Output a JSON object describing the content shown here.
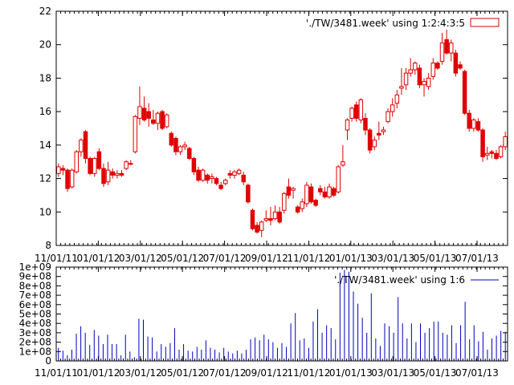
{
  "colors": {
    "candle": "#e00000",
    "volume": "#0000c0",
    "axis": "#000000"
  },
  "chart_data": [
    {
      "type": "candlestick",
      "legend_label": "'./TW/3481.week' using 1:2:4:3:5",
      "legend_position": "top-right",
      "ylim": [
        8,
        22
      ],
      "yticks": [
        "8",
        "10",
        "12",
        "14",
        "16",
        "18",
        "20",
        "22"
      ],
      "xtick_labels": [
        "11/01/11",
        "01/01/12",
        "03/01/12",
        "05/01/12",
        "07/01/12",
        "09/01/12",
        "11/01/12",
        "01/01/13",
        "03/01/13",
        "05/01/13",
        "07/01/13"
      ],
      "candles": [
        {
          "o": 12.3,
          "h": 12.9,
          "l": 12.1,
          "c": 12.7
        },
        {
          "o": 12.6,
          "h": 12.8,
          "l": 12.2,
          "c": 12.5
        },
        {
          "o": 12.5,
          "h": 12.6,
          "l": 11.2,
          "c": 11.4
        },
        {
          "o": 11.5,
          "h": 12.6,
          "l": 11.4,
          "c": 12.5
        },
        {
          "o": 12.4,
          "h": 13.7,
          "l": 12.3,
          "c": 13.6
        },
        {
          "o": 13.6,
          "h": 14.4,
          "l": 13.3,
          "c": 14.3
        },
        {
          "o": 14.8,
          "h": 14.9,
          "l": 12.9,
          "c": 13.2
        },
        {
          "o": 13.2,
          "h": 13.3,
          "l": 12.2,
          "c": 12.3
        },
        {
          "o": 12.3,
          "h": 13.3,
          "l": 12.1,
          "c": 13.2
        },
        {
          "o": 13.6,
          "h": 13.8,
          "l": 12.5,
          "c": 12.6
        },
        {
          "o": 12.6,
          "h": 12.9,
          "l": 11.5,
          "c": 11.7
        },
        {
          "o": 11.8,
          "h": 13.0,
          "l": 11.6,
          "c": 12.5
        },
        {
          "o": 12.4,
          "h": 12.6,
          "l": 12.0,
          "c": 12.2
        },
        {
          "o": 12.2,
          "h": 12.5,
          "l": 12.0,
          "c": 12.3
        },
        {
          "o": 12.3,
          "h": 12.5,
          "l": 12.1,
          "c": 12.2
        },
        {
          "o": 12.6,
          "h": 13.1,
          "l": 12.5,
          "c": 13.0
        },
        {
          "o": 12.9,
          "h": 13.1,
          "l": 12.8,
          "c": 12.9
        },
        {
          "o": 13.6,
          "h": 15.8,
          "l": 13.5,
          "c": 15.7
        },
        {
          "o": 15.6,
          "h": 17.5,
          "l": 15.2,
          "c": 16.3
        },
        {
          "o": 16.2,
          "h": 16.9,
          "l": 15.4,
          "c": 15.5
        },
        {
          "o": 16.0,
          "h": 16.5,
          "l": 15.1,
          "c": 15.6
        },
        {
          "o": 15.5,
          "h": 16.1,
          "l": 15.2,
          "c": 15.3
        },
        {
          "o": 15.3,
          "h": 16.0,
          "l": 14.9,
          "c": 15.9
        },
        {
          "o": 16.0,
          "h": 16.1,
          "l": 14.9,
          "c": 15.0
        },
        {
          "o": 15.1,
          "h": 15.9,
          "l": 15.0,
          "c": 15.8
        },
        {
          "o": 14.7,
          "h": 14.8,
          "l": 13.9,
          "c": 14.0
        },
        {
          "o": 14.4,
          "h": 14.5,
          "l": 13.4,
          "c": 13.6
        },
        {
          "o": 13.6,
          "h": 14.0,
          "l": 13.4,
          "c": 13.9
        },
        {
          "o": 13.9,
          "h": 14.2,
          "l": 13.7,
          "c": 14.0
        },
        {
          "o": 13.8,
          "h": 13.9,
          "l": 13.1,
          "c": 13.2
        },
        {
          "o": 13.2,
          "h": 13.3,
          "l": 12.2,
          "c": 12.4
        },
        {
          "o": 12.5,
          "h": 12.7,
          "l": 11.8,
          "c": 11.9
        },
        {
          "o": 11.9,
          "h": 12.6,
          "l": 11.8,
          "c": 12.5
        },
        {
          "o": 12.2,
          "h": 12.3,
          "l": 11.7,
          "c": 11.9
        },
        {
          "o": 12.0,
          "h": 12.3,
          "l": 11.7,
          "c": 12.1
        },
        {
          "o": 12.0,
          "h": 12.1,
          "l": 11.6,
          "c": 11.7
        },
        {
          "o": 11.6,
          "h": 11.8,
          "l": 11.3,
          "c": 11.4
        },
        {
          "o": 11.7,
          "h": 12.0,
          "l": 11.6,
          "c": 11.9
        },
        {
          "o": 12.3,
          "h": 12.5,
          "l": 12.0,
          "c": 12.2
        },
        {
          "o": 12.2,
          "h": 12.5,
          "l": 12.0,
          "c": 12.4
        },
        {
          "o": 12.3,
          "h": 12.6,
          "l": 12.2,
          "c": 12.5
        },
        {
          "o": 12.2,
          "h": 12.4,
          "l": 11.6,
          "c": 11.8
        },
        {
          "o": 11.6,
          "h": 11.7,
          "l": 10.5,
          "c": 10.6
        },
        {
          "o": 10.1,
          "h": 10.2,
          "l": 8.9,
          "c": 9.0
        },
        {
          "o": 9.2,
          "h": 9.4,
          "l": 8.7,
          "c": 8.8
        },
        {
          "o": 8.9,
          "h": 9.5,
          "l": 8.5,
          "c": 9.4
        },
        {
          "o": 9.5,
          "h": 10.1,
          "l": 9.4,
          "c": 9.6
        },
        {
          "o": 9.6,
          "h": 10.3,
          "l": 9.2,
          "c": 9.5
        },
        {
          "o": 9.6,
          "h": 10.4,
          "l": 9.5,
          "c": 10.0
        },
        {
          "o": 10.0,
          "h": 10.3,
          "l": 9.3,
          "c": 9.4
        },
        {
          "o": 10.1,
          "h": 11.2,
          "l": 9.9,
          "c": 11.1
        },
        {
          "o": 11.5,
          "h": 12.0,
          "l": 10.8,
          "c": 11.0
        },
        {
          "o": 11.3,
          "h": 11.5,
          "l": 10.8,
          "c": 11.4
        },
        {
          "o": 10.3,
          "h": 10.4,
          "l": 9.9,
          "c": 10.0
        },
        {
          "o": 10.2,
          "h": 10.8,
          "l": 10.0,
          "c": 10.6
        },
        {
          "o": 10.5,
          "h": 11.8,
          "l": 10.3,
          "c": 11.6
        },
        {
          "o": 11.5,
          "h": 11.7,
          "l": 10.5,
          "c": 10.6
        },
        {
          "o": 10.7,
          "h": 10.8,
          "l": 10.3,
          "c": 10.4
        },
        {
          "o": 11.4,
          "h": 11.6,
          "l": 11.0,
          "c": 11.2
        },
        {
          "o": 11.2,
          "h": 11.5,
          "l": 10.8,
          "c": 10.9
        },
        {
          "o": 10.9,
          "h": 11.7,
          "l": 10.8,
          "c": 11.5
        },
        {
          "o": 11.4,
          "h": 11.5,
          "l": 10.9,
          "c": 11.0
        },
        {
          "o": 11.2,
          "h": 12.8,
          "l": 11.1,
          "c": 12.7
        },
        {
          "o": 12.8,
          "h": 14.0,
          "l": 12.7,
          "c": 13.0
        },
        {
          "o": 14.9,
          "h": 15.6,
          "l": 14.3,
          "c": 15.5
        },
        {
          "o": 15.6,
          "h": 16.3,
          "l": 15.4,
          "c": 16.2
        },
        {
          "o": 16.4,
          "h": 16.6,
          "l": 15.4,
          "c": 15.6
        },
        {
          "o": 15.5,
          "h": 16.8,
          "l": 15.3,
          "c": 16.7
        },
        {
          "o": 15.6,
          "h": 15.9,
          "l": 14.6,
          "c": 14.9
        },
        {
          "o": 14.9,
          "h": 15.0,
          "l": 13.5,
          "c": 13.7
        },
        {
          "o": 13.9,
          "h": 14.5,
          "l": 13.7,
          "c": 14.3
        },
        {
          "o": 14.7,
          "h": 15.4,
          "l": 14.3,
          "c": 14.6
        },
        {
          "o": 14.8,
          "h": 15.1,
          "l": 14.6,
          "c": 14.9
        },
        {
          "o": 15.4,
          "h": 16.2,
          "l": 15.3,
          "c": 16.0
        },
        {
          "o": 16.0,
          "h": 16.8,
          "l": 15.7,
          "c": 16.4
        },
        {
          "o": 16.5,
          "h": 17.3,
          "l": 16.2,
          "c": 17.0
        },
        {
          "o": 17.4,
          "h": 18.6,
          "l": 17.0,
          "c": 17.5
        },
        {
          "o": 17.6,
          "h": 18.6,
          "l": 17.3,
          "c": 18.3
        },
        {
          "o": 18.3,
          "h": 19.2,
          "l": 18.1,
          "c": 18.5
        },
        {
          "o": 18.5,
          "h": 19.0,
          "l": 18.2,
          "c": 18.9
        },
        {
          "o": 18.6,
          "h": 18.8,
          "l": 17.4,
          "c": 17.6
        },
        {
          "o": 17.6,
          "h": 18.0,
          "l": 16.9,
          "c": 17.8
        },
        {
          "o": 17.5,
          "h": 18.3,
          "l": 17.3,
          "c": 18.0
        },
        {
          "o": 18.1,
          "h": 19.2,
          "l": 17.9,
          "c": 18.9
        },
        {
          "o": 18.9,
          "h": 19.0,
          "l": 18.5,
          "c": 18.6
        },
        {
          "o": 19.0,
          "h": 20.7,
          "l": 18.8,
          "c": 20.1
        },
        {
          "o": 20.3,
          "h": 20.9,
          "l": 19.4,
          "c": 19.5
        },
        {
          "o": 19.5,
          "h": 20.3,
          "l": 19.0,
          "c": 20.1
        },
        {
          "o": 19.5,
          "h": 19.7,
          "l": 18.1,
          "c": 18.3
        },
        {
          "o": 18.8,
          "h": 19.0,
          "l": 18.5,
          "c": 18.6
        },
        {
          "o": 18.4,
          "h": 18.5,
          "l": 15.8,
          "c": 15.9
        },
        {
          "o": 15.9,
          "h": 16.1,
          "l": 14.8,
          "c": 15.0
        },
        {
          "o": 15.0,
          "h": 15.6,
          "l": 14.8,
          "c": 15.5
        },
        {
          "o": 15.4,
          "h": 15.6,
          "l": 14.8,
          "c": 14.9
        },
        {
          "o": 14.9,
          "h": 15.0,
          "l": 13.0,
          "c": 13.3
        },
        {
          "o": 13.4,
          "h": 13.9,
          "l": 13.1,
          "c": 13.5
        },
        {
          "o": 13.6,
          "h": 13.7,
          "l": 13.2,
          "c": 13.5
        },
        {
          "o": 13.5,
          "h": 13.7,
          "l": 13.1,
          "c": 13.2
        },
        {
          "o": 13.3,
          "h": 14.0,
          "l": 13.2,
          "c": 13.9
        },
        {
          "o": 13.9,
          "h": 14.8,
          "l": 13.7,
          "c": 14.5
        }
      ]
    },
    {
      "type": "impulse",
      "legend_label": "'./TW/3481.week' using 1:6",
      "legend_position": "top-right",
      "ylim": [
        0,
        1000000000
      ],
      "yticks": [
        "0",
        "1e+08",
        "2e+08",
        "3e+08",
        "4e+08",
        "5e+08",
        "6e+08",
        "7e+08",
        "8e+08",
        "9e+08",
        "1e+09"
      ],
      "xtick_labels": [
        "11/01/11",
        "01/01/12",
        "03/01/12",
        "05/01/12",
        "07/01/12",
        "09/01/12",
        "11/01/12",
        "01/01/13",
        "03/01/13",
        "05/01/13",
        "07/01/13"
      ],
      "values": [
        140000000,
        110000000,
        60000000,
        120000000,
        290000000,
        370000000,
        300000000,
        170000000,
        330000000,
        270000000,
        180000000,
        280000000,
        180000000,
        180000000,
        60000000,
        280000000,
        100000000,
        40000000,
        450000000,
        440000000,
        260000000,
        250000000,
        100000000,
        180000000,
        150000000,
        190000000,
        350000000,
        120000000,
        180000000,
        110000000,
        100000000,
        150000000,
        120000000,
        220000000,
        140000000,
        120000000,
        90000000,
        140000000,
        100000000,
        80000000,
        110000000,
        80000000,
        120000000,
        230000000,
        250000000,
        220000000,
        280000000,
        230000000,
        200000000,
        140000000,
        190000000,
        150000000,
        400000000,
        510000000,
        220000000,
        240000000,
        140000000,
        420000000,
        550000000,
        300000000,
        380000000,
        350000000,
        230000000,
        940000000,
        970000000,
        950000000,
        740000000,
        610000000,
        460000000,
        300000000,
        720000000,
        240000000,
        160000000,
        400000000,
        370000000,
        300000000,
        680000000,
        400000000,
        240000000,
        400000000,
        200000000,
        400000000,
        300000000,
        350000000,
        420000000,
        420000000,
        300000000,
        280000000,
        380000000,
        190000000,
        380000000,
        630000000,
        230000000,
        380000000,
        210000000,
        310000000,
        120000000,
        240000000,
        270000000,
        320000000,
        310000000
      ]
    }
  ]
}
